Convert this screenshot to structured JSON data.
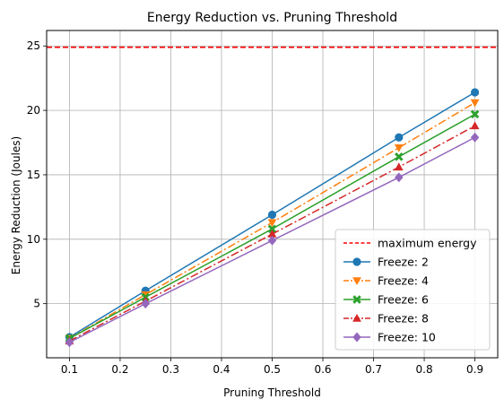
{
  "chart_data": {
    "type": "line",
    "title": "Energy Reduction vs. Pruning Threshold",
    "xlabel": "Pruning Threshold",
    "ylabel": "Energy Reduction (Joules)",
    "xlim": [
      0.055,
      0.945
    ],
    "ylim": [
      0.8,
      26.2
    ],
    "xticks": [
      0.1,
      0.2,
      0.3,
      0.4,
      0.5,
      0.6,
      0.7,
      0.8,
      0.9
    ],
    "xtick_labels": [
      "0.1",
      "0.2",
      "0.3",
      "0.4",
      "0.5",
      "0.6",
      "0.7",
      "0.8",
      "0.9"
    ],
    "yticks": [
      5,
      10,
      15,
      20,
      25
    ],
    "ytick_labels": [
      "5",
      "10",
      "15",
      "20",
      "25"
    ],
    "grid": true,
    "legend_position": "lower-right",
    "x": [
      0.1,
      0.25,
      0.5,
      0.75,
      0.9
    ],
    "reference_line": {
      "name": "maximum energy",
      "value": 24.9,
      "color": "#ff0000",
      "style": "dashed"
    },
    "series": [
      {
        "name": "Freeze: 2",
        "values": [
          2.4,
          6.0,
          11.9,
          17.9,
          21.4
        ],
        "color": "#1f77b4",
        "marker": "circle",
        "style": "solid"
      },
      {
        "name": "Freeze: 4",
        "values": [
          2.3,
          5.7,
          11.3,
          17.1,
          20.6
        ],
        "color": "#ff7f0e",
        "marker": "triangle-down",
        "style": "dashdot"
      },
      {
        "name": "Freeze: 6",
        "values": [
          2.3,
          5.5,
          10.8,
          16.4,
          19.7
        ],
        "color": "#2ca02c",
        "marker": "x-filled",
        "style": "solid"
      },
      {
        "name": "Freeze: 8",
        "values": [
          2.1,
          5.2,
          10.4,
          15.6,
          18.8
        ],
        "color": "#d62728",
        "marker": "triangle-up",
        "style": "dashdot"
      },
      {
        "name": "Freeze: 10",
        "values": [
          2.0,
          5.0,
          9.9,
          14.8,
          17.9
        ],
        "color": "#9467bd",
        "marker": "diamond",
        "style": "solid"
      }
    ]
  }
}
